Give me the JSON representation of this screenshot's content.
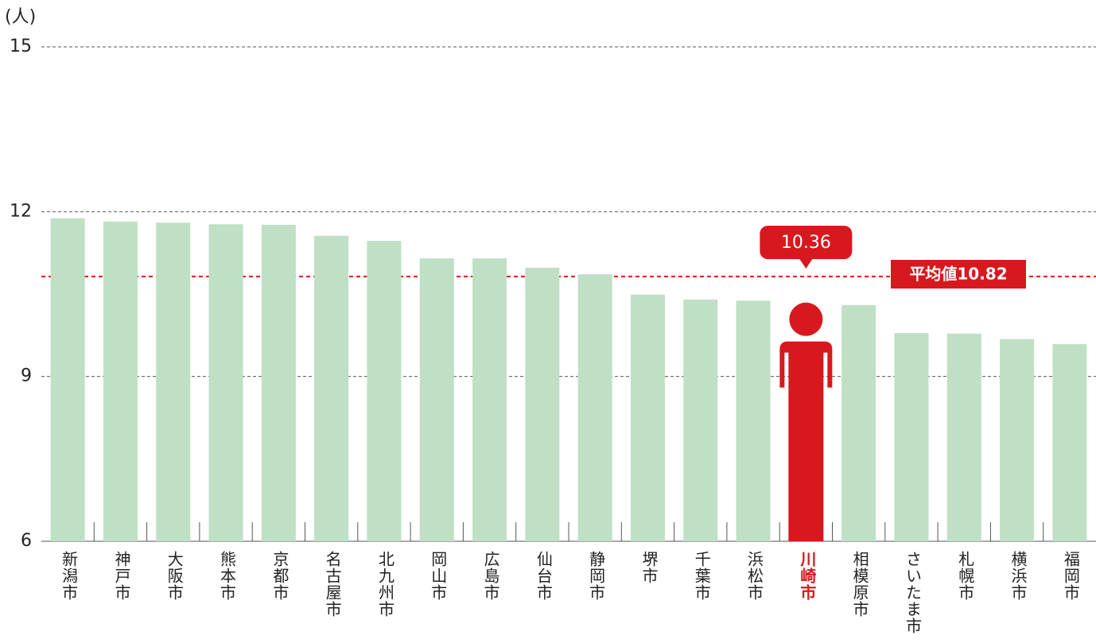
{
  "chart_data": {
    "type": "bar",
    "y_label": "(人)",
    "categories": [
      "新潟市",
      "神戸市",
      "大阪市",
      "熊本市",
      "京都市",
      "名古屋市",
      "北九州市",
      "岡山市",
      "広島市",
      "仙台市",
      "静岡市",
      "堺市",
      "千葉市",
      "浜松市",
      "川崎市",
      "相模原市",
      "さいたま市",
      "札幌市",
      "横浜市",
      "福岡市"
    ],
    "values": [
      11.88,
      11.82,
      11.8,
      11.77,
      11.76,
      11.56,
      11.47,
      11.15,
      11.15,
      10.98,
      10.86,
      10.49,
      10.4,
      10.38,
      10.36,
      10.3,
      9.79,
      9.78,
      9.68,
      9.59
    ],
    "color": "#bfe0c4",
    "highlight_index": 14,
    "highlight_color": "#d7191f",
    "average": {
      "value": 10.82,
      "label": "平均値10.82"
    },
    "ylim": [
      6,
      15
    ],
    "yticks": [
      6,
      9,
      12,
      15
    ],
    "grid": true
  }
}
